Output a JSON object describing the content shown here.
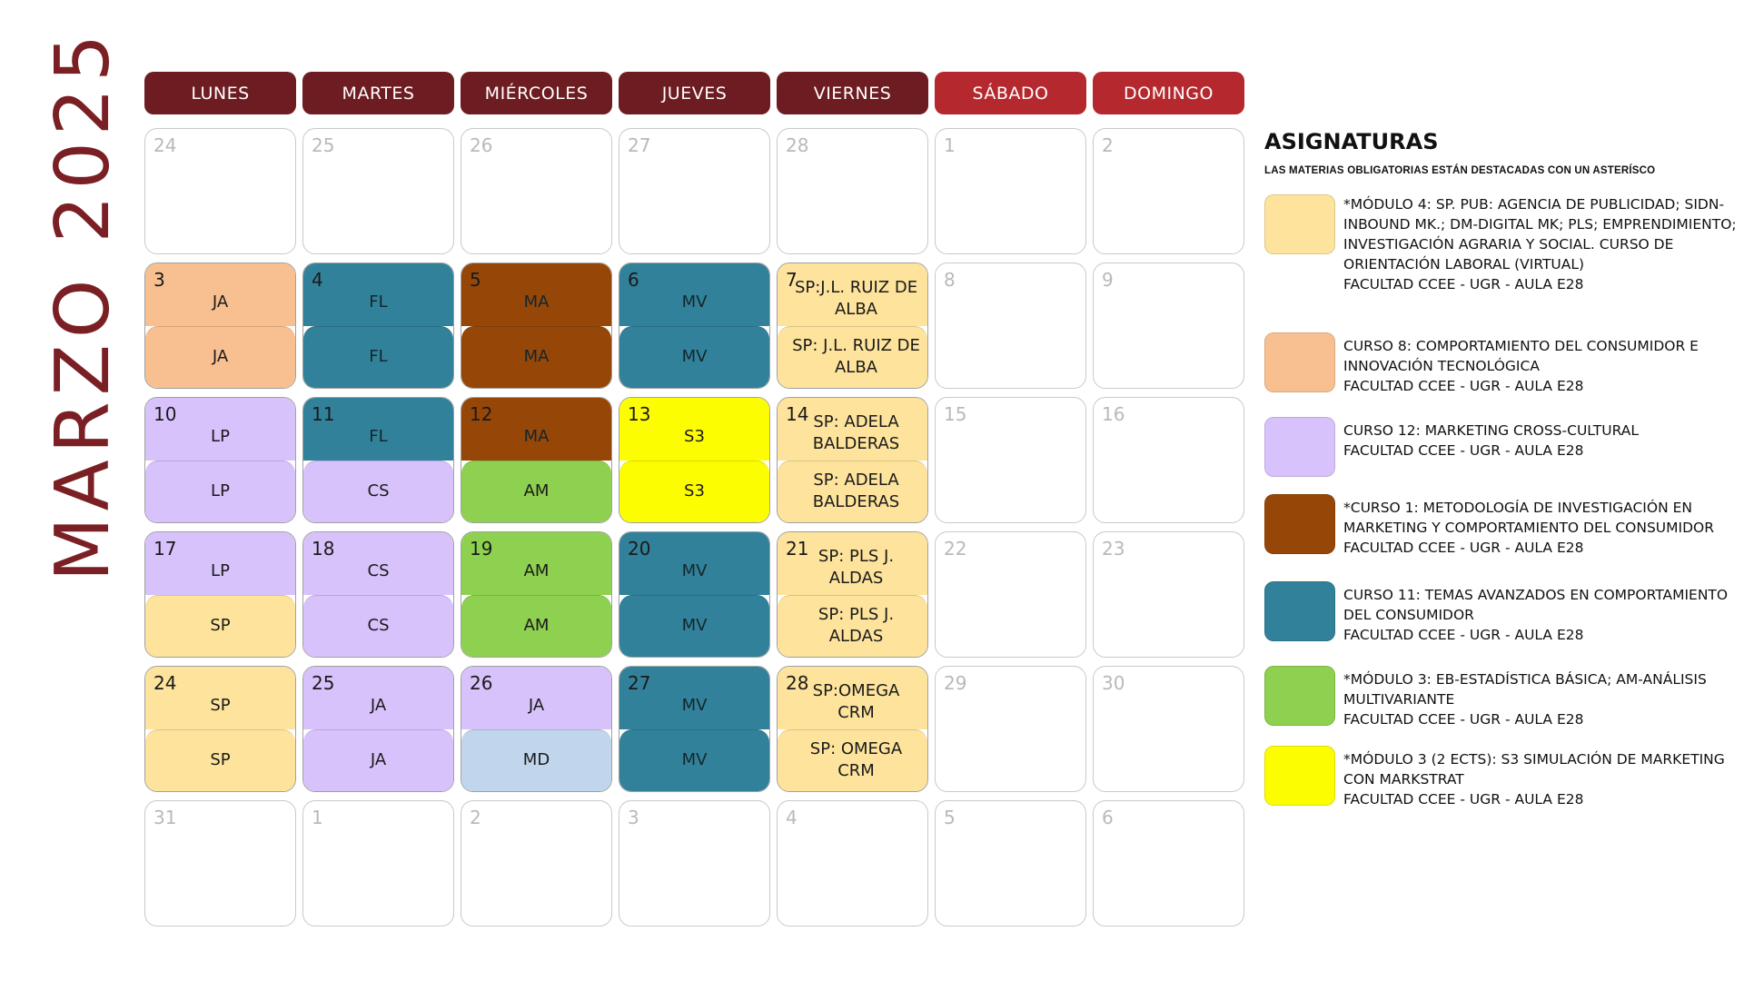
{
  "title": "MARZO 2025",
  "colors": {
    "title": "#7a1f24",
    "weekday_header": "#6d1c21",
    "weekend_header": "#b5282e",
    "JA": "#f8c090",
    "FL": "#32819a",
    "MA": "#964708",
    "MV": "#32819a",
    "SP": "#fde39c",
    "LP": "#d8c2fb",
    "CS": "#d8c2fb",
    "AM": "#8ed04f",
    "S3": "#fdfd02",
    "MD": "#c1d6ec"
  },
  "headers": [
    {
      "label": "LUNES",
      "weekend": false
    },
    {
      "label": "MARTES",
      "weekend": false
    },
    {
      "label": "MIÉRCOLES",
      "weekend": false
    },
    {
      "label": "JUEVES",
      "weekend": false
    },
    {
      "label": "VIERNES",
      "weekend": false
    },
    {
      "label": "SÁBADO",
      "weekend": true
    },
    {
      "label": "DOMINGO",
      "weekend": true
    }
  ],
  "weeks": [
    [
      {
        "day": "24"
      },
      {
        "day": "25"
      },
      {
        "day": "26"
      },
      {
        "day": "27"
      },
      {
        "day": "28"
      },
      {
        "day": "1"
      },
      {
        "day": "2"
      }
    ],
    [
      {
        "day": "3",
        "top": "JA",
        "bottom": "JA",
        "top_color": "#f8c090",
        "bottom_color": "#f8c090"
      },
      {
        "day": "4",
        "top": "FL",
        "bottom": "FL",
        "top_color": "#32819a",
        "bottom_color": "#32819a"
      },
      {
        "day": "5",
        "top": "MA",
        "bottom": "MA",
        "top_color": "#964708",
        "bottom_color": "#964708"
      },
      {
        "day": "6",
        "top": "MV",
        "bottom": "MV",
        "top_color": "#32819a",
        "bottom_color": "#32819a"
      },
      {
        "day": "7",
        "top": "SP:J.L. RUIZ DE ALBA",
        "bottom": "SP: J.L. RUIZ DE ALBA",
        "top_color": "#fde39c",
        "bottom_color": "#fde39c",
        "wide": true
      },
      {
        "day": "8"
      },
      {
        "day": "9"
      }
    ],
    [
      {
        "day": "10",
        "top": "LP",
        "bottom": "LP",
        "top_color": "#d8c2fb",
        "bottom_color": "#d8c2fb"
      },
      {
        "day": "11",
        "top": "FL",
        "bottom": "CS",
        "top_color": "#32819a",
        "bottom_color": "#d8c2fb"
      },
      {
        "day": "12",
        "top": "MA",
        "bottom": "AM",
        "top_color": "#964708",
        "bottom_color": "#8ed04f"
      },
      {
        "day": "13",
        "top": "S3",
        "bottom": "S3",
        "top_color": "#fdfd02",
        "bottom_color": "#fdfd02"
      },
      {
        "day": "14",
        "top": "SP: ADELA BALDERAS",
        "bottom": "SP: ADELA BALDERAS",
        "top_color": "#fde39c",
        "bottom_color": "#fde39c",
        "wide": true
      },
      {
        "day": "15"
      },
      {
        "day": "16"
      }
    ],
    [
      {
        "day": "17",
        "top": "LP",
        "bottom": "SP",
        "top_color": "#d8c2fb",
        "bottom_color": "#fde39c"
      },
      {
        "day": "18",
        "top": "CS",
        "bottom": "CS",
        "top_color": "#d8c2fb",
        "bottom_color": "#d8c2fb"
      },
      {
        "day": "19",
        "top": "AM",
        "bottom": "AM",
        "top_color": "#8ed04f",
        "bottom_color": "#8ed04f"
      },
      {
        "day": "20",
        "top": "MV",
        "bottom": "MV",
        "top_color": "#32819a",
        "bottom_color": "#32819a"
      },
      {
        "day": "21",
        "top": "SP: PLS J. ALDAS",
        "bottom": "SP: PLS J. ALDAS",
        "top_color": "#fde39c",
        "bottom_color": "#fde39c",
        "wide": true
      },
      {
        "day": "22"
      },
      {
        "day": "23"
      }
    ],
    [
      {
        "day": "24",
        "top": "SP",
        "bottom": "SP",
        "top_color": "#fde39c",
        "bottom_color": "#fde39c"
      },
      {
        "day": "25",
        "top": "JA",
        "bottom": "JA",
        "top_color": "#d8c2fb",
        "bottom_color": "#d8c2fb"
      },
      {
        "day": "26",
        "top": "JA",
        "bottom": "MD",
        "top_color": "#d8c2fb",
        "bottom_color": "#c1d6ec"
      },
      {
        "day": "27",
        "top": "MV",
        "bottom": "MV",
        "top_color": "#32819a",
        "bottom_color": "#32819a"
      },
      {
        "day": "28",
        "top": "SP:OMEGA CRM",
        "bottom": "SP: OMEGA CRM",
        "top_color": "#fde39c",
        "bottom_color": "#fde39c",
        "wide": true
      },
      {
        "day": "29"
      },
      {
        "day": "30"
      }
    ],
    [
      {
        "day": "31"
      },
      {
        "day": "1"
      },
      {
        "day": "2"
      },
      {
        "day": "3"
      },
      {
        "day": "4"
      },
      {
        "day": "5"
      },
      {
        "day": "6"
      }
    ]
  ],
  "legend": {
    "title": "ASIGNATURAS",
    "subtitle": "LAS MATERIAS OBLIGATORIAS ESTÁN DESTACADAS CON UN ASTERÍSCO",
    "items": [
      {
        "color": "#fde39c",
        "lines": [
          "*MÓDULO 4: SP. PUB: AGENCIA DE PUBLICIDAD; SIDN-INBOUND MK.; DM-DIGITAL MK; PLS; EMPRENDIMIENTO; INVESTIGACIÓN AGRARIA Y SOCIAL. CURSO DE ORIENTACIÓN LABORAL (VIRTUAL)",
          "FACULTAD CCEE - UGR - AULA E28"
        ]
      },
      {
        "color": "#f8c090",
        "lines": [
          "CURSO 8: COMPORTAMIENTO DEL CONSUMIDOR E INNOVACIÓN TECNOLÓGICA",
          "FACULTAD CCEE - UGR - AULA E28"
        ]
      },
      {
        "color": "#d8c2fb",
        "lines": [
          "CURSO 12: MARKETING CROSS-CULTURAL",
          "FACULTAD CCEE - UGR - AULA E28"
        ]
      },
      {
        "color": "#964708",
        "lines": [
          "*CURSO 1: METODOLOGÍA DE INVESTIGACIÓN EN MARKETING Y COMPORTAMIENTO DEL CONSUMIDOR",
          "FACULTAD CCEE - UGR - AULA E28"
        ]
      },
      {
        "color": "#32819a",
        "lines": [
          "CURSO 11: TEMAS AVANZADOS EN COMPORTAMIENTO DEL CONSUMIDOR",
          "FACULTAD CCEE - UGR - AULA E28"
        ]
      },
      {
        "color": "#8ed04f",
        "lines": [
          "*MÓDULO 3: EB-ESTADÍSTICA BÁSICA; AM-ANÁLISIS MULTIVARIANTE",
          "FACULTAD CCEE - UGR - AULA E28"
        ]
      },
      {
        "color": "#fdfd02",
        "lines": [
          "*MÓDULO 3 (2 ECTS): S3 SIMULACIÓN DE MARKETING CON MARKSTRAT",
          "FACULTAD CCEE - UGR - AULA E28"
        ]
      }
    ]
  }
}
